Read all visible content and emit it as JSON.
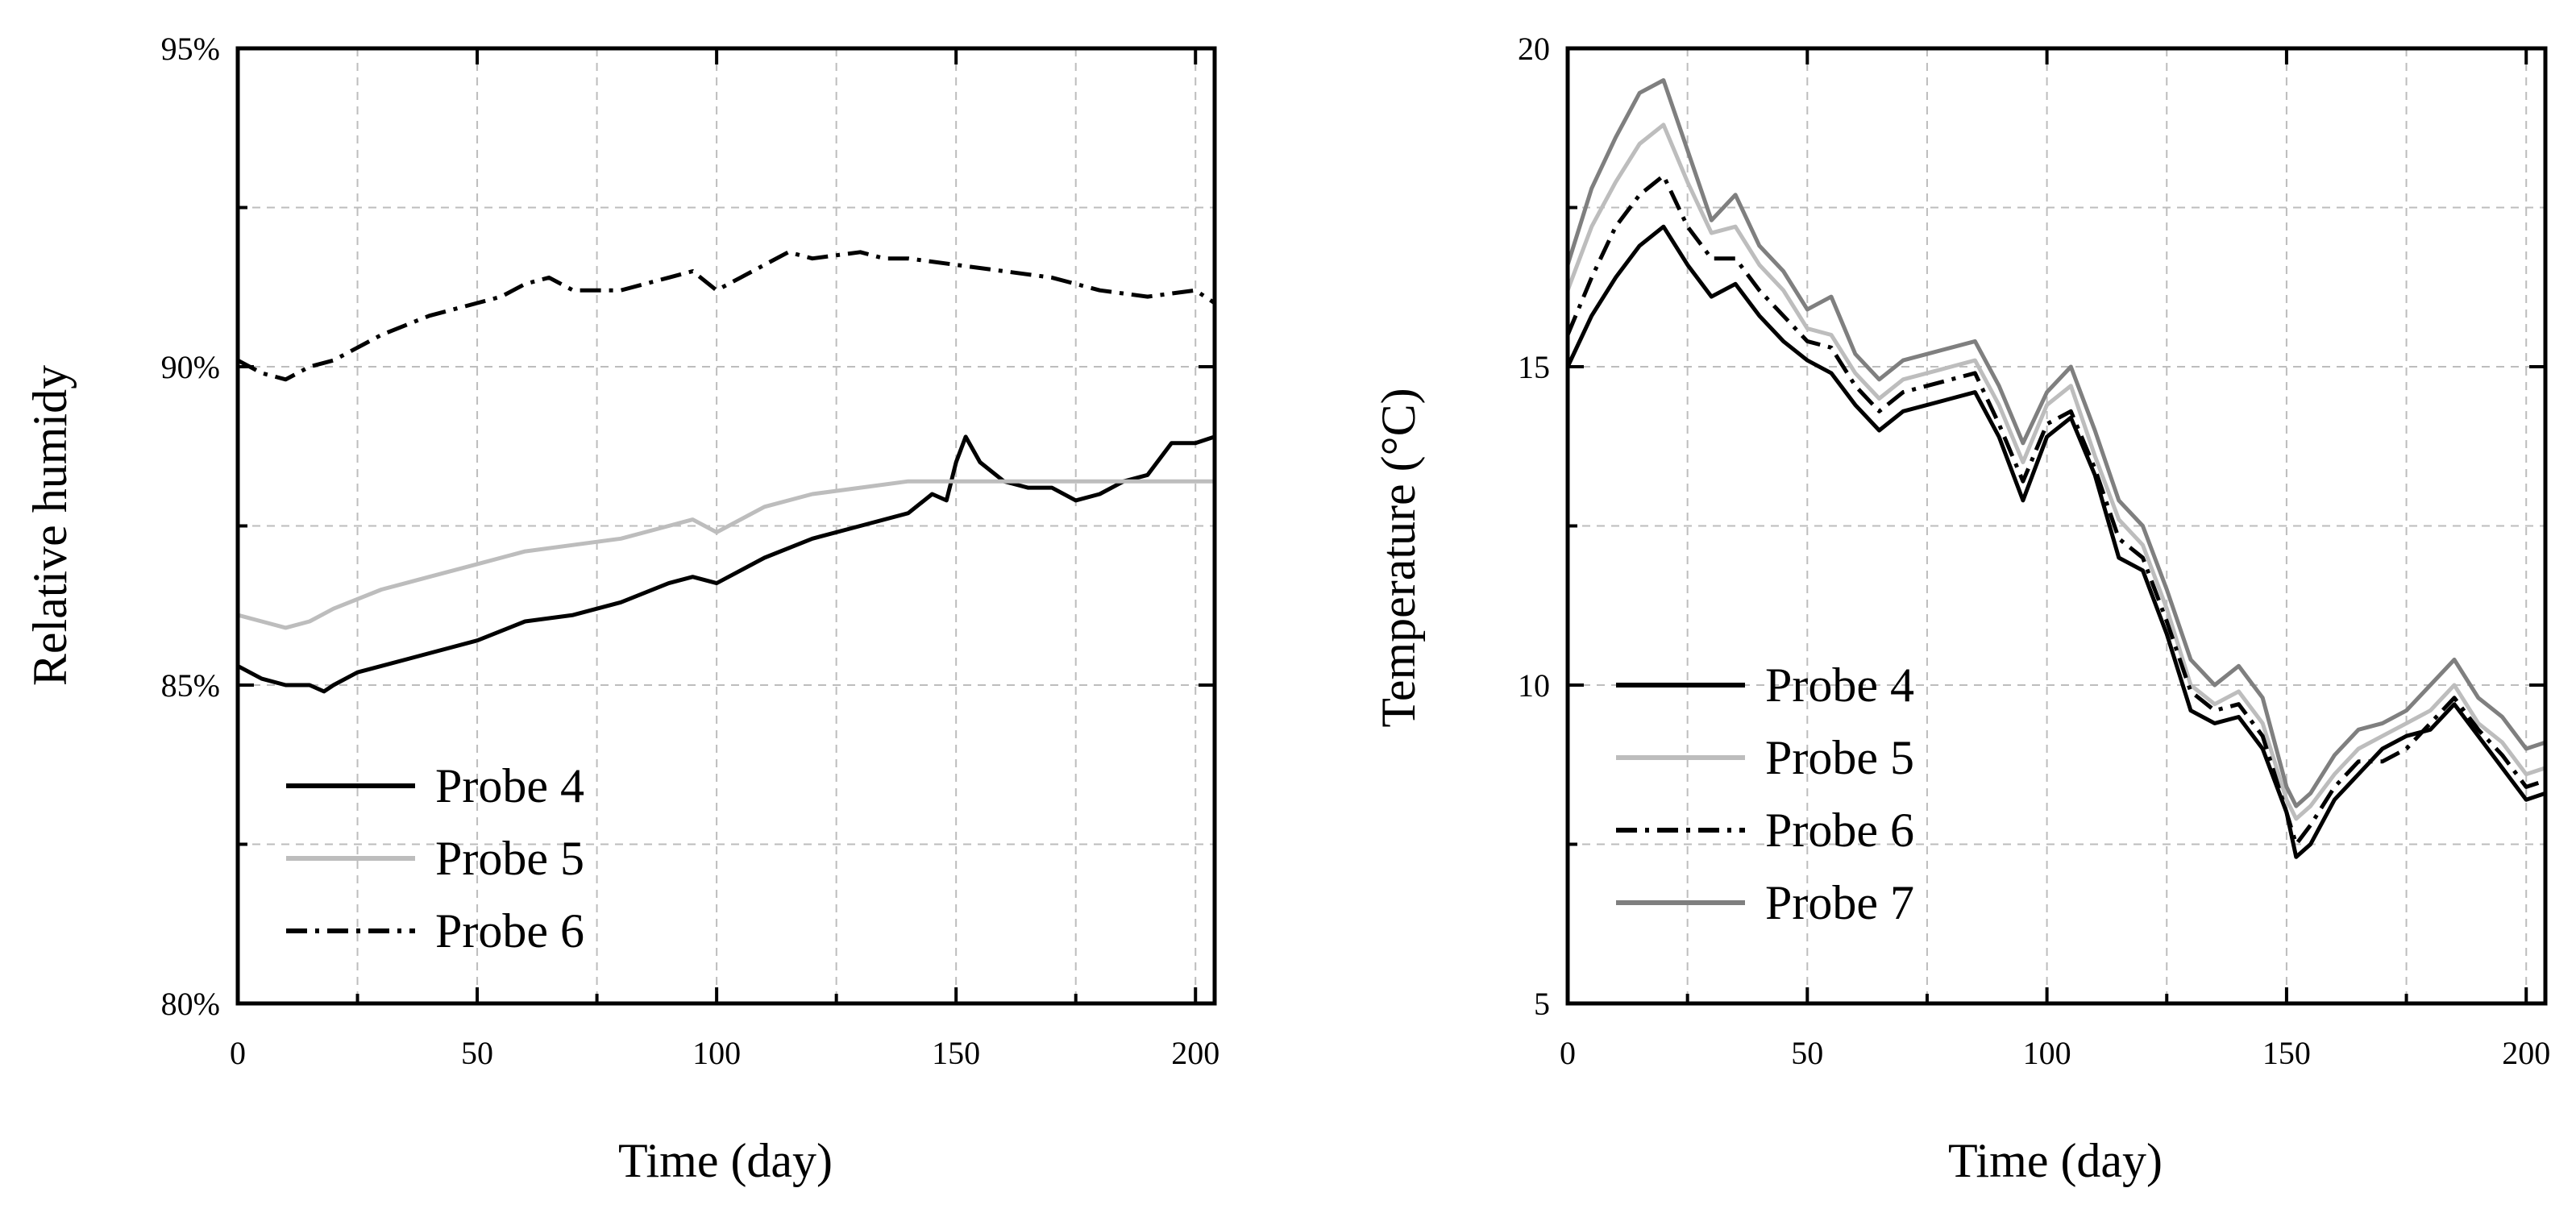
{
  "colors": {
    "black": "#000000",
    "light_gray": "#bdbdbd",
    "mid_gray": "#7f7f7f"
  },
  "chart_data": [
    {
      "type": "line",
      "title": "",
      "xlabel": "Time (day)",
      "ylabel": "Relative humidy",
      "xlim": [
        0,
        204
      ],
      "ylim": [
        80,
        95
      ],
      "x_ticks": [
        0,
        50,
        100,
        150,
        200
      ],
      "x_tick_labels": [
        "0",
        "50",
        "100",
        "150",
        "200"
      ],
      "y_ticks": [
        80,
        85,
        90,
        95
      ],
      "y_tick_labels": [
        "80%",
        "85%",
        "90%",
        "95%"
      ],
      "grid": true,
      "legend_position": "bottom-left",
      "series": [
        {
          "name": "Probe 4",
          "color": "#000000",
          "dash": "solid",
          "x": [
            0,
            5,
            10,
            15,
            18,
            20,
            25,
            30,
            40,
            50,
            60,
            70,
            80,
            90,
            95,
            100,
            110,
            120,
            130,
            140,
            145,
            148,
            150,
            152,
            155,
            160,
            165,
            170,
            175,
            180,
            185,
            190,
            195,
            200,
            204
          ],
          "y": [
            85.3,
            85.1,
            85.0,
            85.0,
            84.9,
            85.0,
            85.2,
            85.3,
            85.5,
            85.7,
            86.0,
            86.1,
            86.3,
            86.6,
            86.7,
            86.6,
            87.0,
            87.3,
            87.5,
            87.7,
            88.0,
            87.9,
            88.5,
            88.9,
            88.5,
            88.2,
            88.1,
            88.1,
            87.9,
            88.0,
            88.2,
            88.3,
            88.8,
            88.8,
            88.9
          ]
        },
        {
          "name": "Probe 5",
          "color": "#bdbdbd",
          "dash": "solid",
          "x": [
            0,
            5,
            10,
            15,
            20,
            30,
            40,
            50,
            60,
            70,
            80,
            90,
            95,
            100,
            110,
            120,
            130,
            140,
            150,
            160,
            170,
            180,
            190,
            200,
            204
          ],
          "y": [
            86.1,
            86.0,
            85.9,
            86.0,
            86.2,
            86.5,
            86.7,
            86.9,
            87.1,
            87.2,
            87.3,
            87.5,
            87.6,
            87.4,
            87.8,
            88.0,
            88.1,
            88.2,
            88.2,
            88.2,
            88.2,
            88.2,
            88.2,
            88.2,
            88.2
          ]
        },
        {
          "name": "Probe 6",
          "color": "#000000",
          "dash": "dashdot",
          "x": [
            0,
            5,
            10,
            15,
            20,
            25,
            30,
            40,
            50,
            55,
            60,
            65,
            70,
            80,
            90,
            95,
            100,
            105,
            110,
            115,
            120,
            130,
            135,
            140,
            150,
            160,
            170,
            180,
            190,
            200,
            204
          ],
          "y": [
            90.1,
            89.9,
            89.8,
            90.0,
            90.1,
            90.3,
            90.5,
            90.8,
            91.0,
            91.1,
            91.3,
            91.4,
            91.2,
            91.2,
            91.4,
            91.5,
            91.2,
            91.4,
            91.6,
            91.8,
            91.7,
            91.8,
            91.7,
            91.7,
            91.6,
            91.5,
            91.4,
            91.2,
            91.1,
            91.2,
            91.0
          ]
        }
      ]
    },
    {
      "type": "line",
      "title": "",
      "xlabel": "Time (day)",
      "ylabel": "Temperature (°C)",
      "xlim": [
        0,
        204
      ],
      "ylim": [
        5,
        20
      ],
      "x_ticks": [
        0,
        50,
        100,
        150,
        200
      ],
      "x_tick_labels": [
        "0",
        "50",
        "100",
        "150",
        "200"
      ],
      "y_ticks": [
        5,
        10,
        15,
        20
      ],
      "y_tick_labels": [
        "5",
        "10",
        "15",
        "20"
      ],
      "grid": true,
      "legend_position": "center-left",
      "series": [
        {
          "name": "Probe 4",
          "color": "#000000",
          "dash": "solid",
          "x": [
            0,
            5,
            10,
            15,
            20,
            25,
            30,
            35,
            40,
            45,
            50,
            55,
            60,
            65,
            70,
            75,
            80,
            85,
            90,
            95,
            100,
            105,
            110,
            115,
            120,
            125,
            130,
            135,
            140,
            145,
            150,
            152,
            155,
            160,
            165,
            170,
            175,
            180,
            185,
            190,
            195,
            200,
            204
          ],
          "y": [
            15.0,
            15.8,
            16.4,
            16.9,
            17.2,
            16.6,
            16.1,
            16.3,
            15.8,
            15.4,
            15.1,
            14.9,
            14.4,
            14.0,
            14.3,
            14.4,
            14.5,
            14.6,
            13.9,
            12.9,
            13.9,
            14.2,
            13.3,
            12.0,
            11.8,
            10.8,
            9.6,
            9.4,
            9.5,
            9.0,
            8.0,
            7.3,
            7.5,
            8.2,
            8.6,
            9.0,
            9.2,
            9.3,
            9.7,
            9.2,
            8.7,
            8.2,
            8.3
          ]
        },
        {
          "name": "Probe 5",
          "color": "#bdbdbd",
          "dash": "solid",
          "x": [
            0,
            5,
            10,
            15,
            20,
            25,
            30,
            35,
            40,
            45,
            50,
            55,
            60,
            65,
            70,
            75,
            80,
            85,
            90,
            95,
            100,
            105,
            110,
            115,
            120,
            125,
            130,
            135,
            140,
            145,
            150,
            152,
            155,
            160,
            165,
            170,
            175,
            180,
            185,
            190,
            195,
            200,
            204
          ],
          "y": [
            16.2,
            17.2,
            17.9,
            18.5,
            18.8,
            17.9,
            17.1,
            17.2,
            16.6,
            16.2,
            15.6,
            15.5,
            14.9,
            14.5,
            14.8,
            14.9,
            15.0,
            15.1,
            14.4,
            13.5,
            14.4,
            14.7,
            13.6,
            12.6,
            12.2,
            11.2,
            10.0,
            9.7,
            9.9,
            9.4,
            8.2,
            7.9,
            8.1,
            8.6,
            9.0,
            9.2,
            9.4,
            9.6,
            10.0,
            9.4,
            9.1,
            8.6,
            8.7
          ]
        },
        {
          "name": "Probe 6",
          "color": "#000000",
          "dash": "dashdot",
          "x": [
            0,
            5,
            10,
            15,
            20,
            25,
            30,
            35,
            40,
            45,
            50,
            55,
            60,
            65,
            70,
            75,
            80,
            85,
            90,
            95,
            100,
            105,
            110,
            115,
            120,
            125,
            130,
            135,
            140,
            145,
            150,
            152,
            155,
            160,
            165,
            170,
            175,
            180,
            185,
            190,
            195,
            200,
            204
          ],
          "y": [
            15.5,
            16.4,
            17.2,
            17.7,
            18.0,
            17.2,
            16.7,
            16.7,
            16.2,
            15.8,
            15.4,
            15.3,
            14.7,
            14.3,
            14.6,
            14.7,
            14.8,
            14.9,
            14.1,
            13.2,
            14.1,
            14.3,
            13.4,
            12.3,
            12.0,
            11.0,
            9.9,
            9.6,
            9.7,
            9.2,
            8.0,
            7.5,
            7.8,
            8.4,
            8.8,
            8.8,
            9.0,
            9.4,
            9.8,
            9.3,
            8.9,
            8.4,
            8.5
          ]
        },
        {
          "name": "Probe 7",
          "color": "#7f7f7f",
          "dash": "solid",
          "x": [
            0,
            5,
            10,
            15,
            20,
            25,
            30,
            35,
            40,
            45,
            50,
            55,
            60,
            65,
            70,
            75,
            80,
            85,
            90,
            95,
            100,
            105,
            110,
            115,
            120,
            125,
            130,
            135,
            140,
            145,
            150,
            152,
            155,
            160,
            165,
            170,
            175,
            180,
            185,
            190,
            195,
            200,
            204
          ],
          "y": [
            16.6,
            17.8,
            18.6,
            19.3,
            19.5,
            18.4,
            17.3,
            17.7,
            16.9,
            16.5,
            15.9,
            16.1,
            15.2,
            14.8,
            15.1,
            15.2,
            15.3,
            15.4,
            14.7,
            13.8,
            14.6,
            15.0,
            14.0,
            12.9,
            12.5,
            11.5,
            10.4,
            10.0,
            10.3,
            9.8,
            8.4,
            8.1,
            8.3,
            8.9,
            9.3,
            9.4,
            9.6,
            10.0,
            10.4,
            9.8,
            9.5,
            9.0,
            9.1
          ]
        }
      ]
    }
  ]
}
